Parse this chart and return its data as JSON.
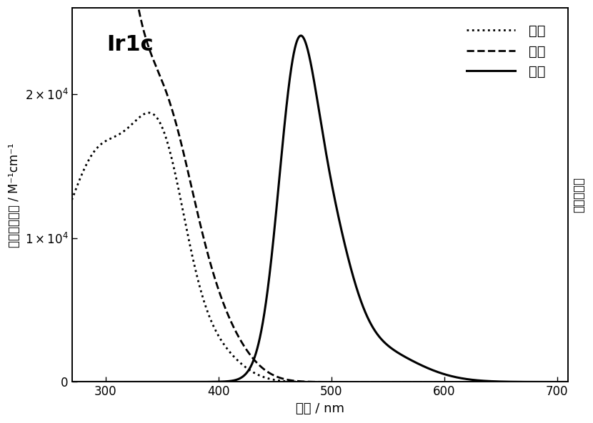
{
  "title": "Ir1c",
  "xlabel": "波长 / nm",
  "ylabel_left": "摩尔吸光系数 / M⁻¹cm⁻¹",
  "ylabel_right": "归一化强度",
  "legend_absorption": "吸收",
  "legend_excitation": "激发",
  "legend_emission": "发射",
  "xlim": [
    270,
    710
  ],
  "ylim_left": [
    0,
    26000
  ],
  "ylim_right": [
    0,
    1.08
  ],
  "xticks": [
    300,
    400,
    500,
    600,
    700
  ],
  "yticks_left": [
    0,
    10000,
    20000
  ],
  "background_color": "#ffffff",
  "line_color": "#000000"
}
